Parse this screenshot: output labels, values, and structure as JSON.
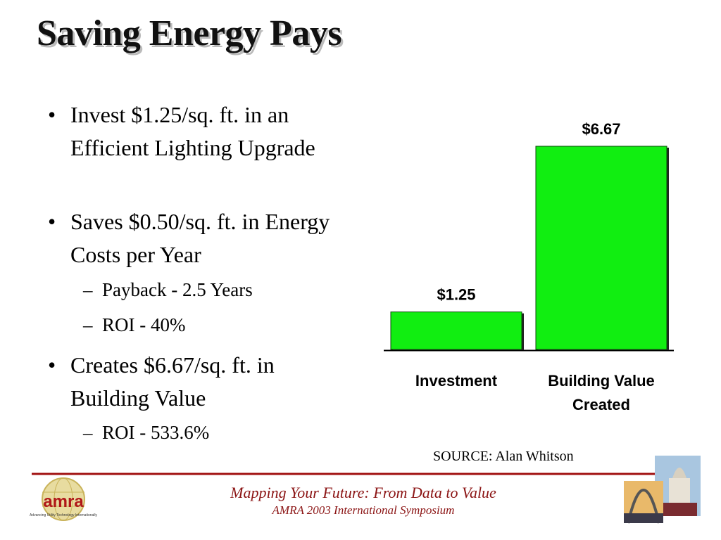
{
  "title": "Saving Energy Pays",
  "bullets": [
    {
      "text": "Invest $1.25/sq. ft. in an  Efficient Lighting Upgrade",
      "sub": []
    },
    {
      "text": "Saves $0.50/sq. ft. in Energy Costs per Year",
      "sub": [
        "Payback - 2.5 Years",
        "ROI - 40%"
      ]
    },
    {
      "text": "Creates $6.67/sq. ft. in Building Value",
      "sub": [
        "ROI - 533.6%"
      ]
    }
  ],
  "chart_data": {
    "type": "bar",
    "categories": [
      "Investment",
      "Building Value Created"
    ],
    "values": [
      1.25,
      6.67
    ],
    "value_labels": [
      "$1.25",
      "$6.67"
    ],
    "color": "#11ee11"
  },
  "source": "SOURCE: Alan Whitson",
  "footer": {
    "line1": "Mapping Your Future: From Data to Value",
    "line2": "AMRA 2003 International Symposium"
  },
  "logo": {
    "name": "amra",
    "tagline": "Advancing Utility Technology Internationally"
  }
}
